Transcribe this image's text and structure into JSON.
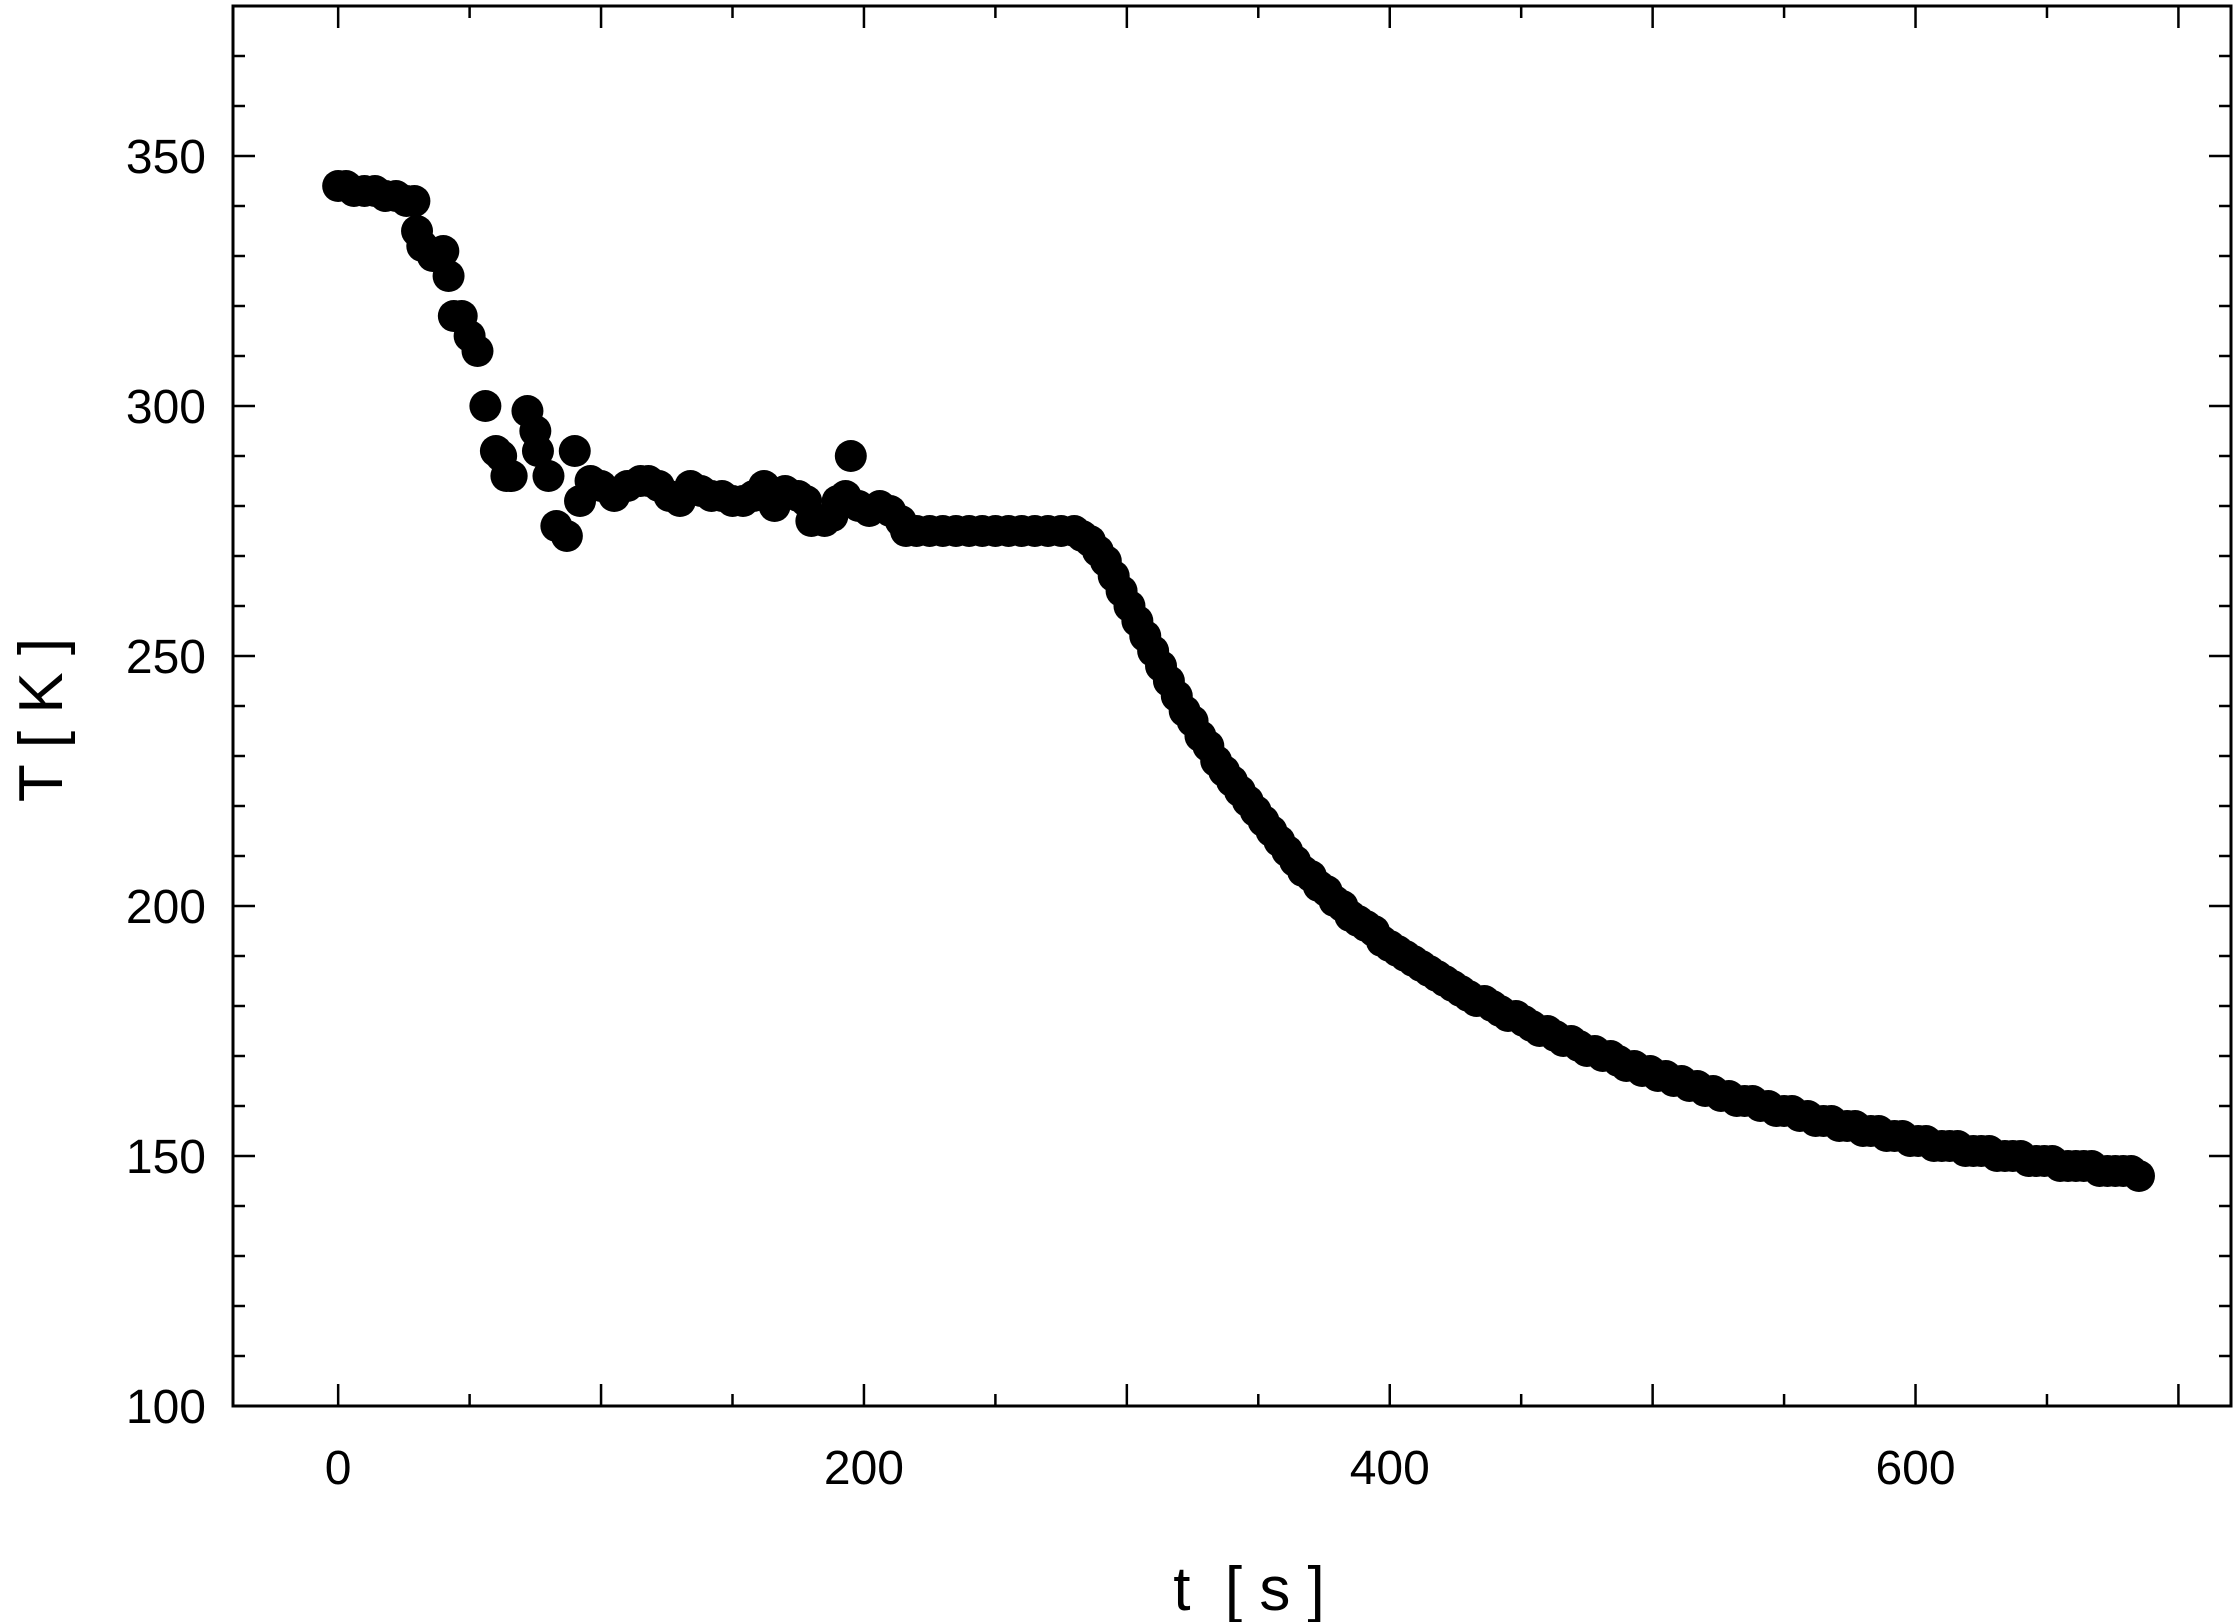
{
  "chart_data": {
    "type": "scatter",
    "title": "",
    "xlabel": "t  [ s ]",
    "ylabel": "T [ K ]",
    "xlim": [
      -40,
      720
    ],
    "ylim": [
      100,
      380
    ],
    "xticks": [
      0,
      200,
      400,
      600
    ],
    "yticks": [
      100,
      150,
      200,
      250,
      300,
      350
    ],
    "grid": false,
    "marker_color": "#000000",
    "series": [
      {
        "points": [
          [
            0,
            344
          ],
          [
            3,
            344
          ],
          [
            6,
            343
          ],
          [
            10,
            343
          ],
          [
            14,
            343
          ],
          [
            18,
            342
          ],
          [
            22,
            342
          ],
          [
            26,
            341
          ],
          [
            29,
            341
          ],
          [
            30,
            335
          ],
          [
            32,
            332
          ],
          [
            36,
            330
          ],
          [
            40,
            331
          ],
          [
            42,
            326
          ],
          [
            44,
            318
          ],
          [
            47,
            318
          ],
          [
            50,
            314
          ],
          [
            53,
            311
          ],
          [
            56,
            300
          ],
          [
            60,
            291
          ],
          [
            62,
            290
          ],
          [
            64,
            286
          ],
          [
            66,
            286
          ],
          [
            72,
            299
          ],
          [
            75,
            295
          ],
          [
            76,
            291
          ],
          [
            80,
            286
          ],
          [
            83,
            276
          ],
          [
            87,
            274
          ],
          [
            90,
            291
          ],
          [
            92,
            281
          ],
          [
            96,
            285
          ],
          [
            100,
            284
          ],
          [
            105,
            282
          ],
          [
            110,
            284
          ],
          [
            115,
            285
          ],
          [
            118,
            285
          ],
          [
            122,
            284
          ],
          [
            126,
            282
          ],
          [
            130,
            281
          ],
          [
            134,
            284
          ],
          [
            138,
            283
          ],
          [
            142,
            282
          ],
          [
            146,
            282
          ],
          [
            150,
            281
          ],
          [
            154,
            281
          ],
          [
            158,
            282
          ],
          [
            162,
            284
          ],
          [
            166,
            280
          ],
          [
            170,
            283
          ],
          [
            175,
            282
          ],
          [
            178,
            281
          ],
          [
            180,
            277
          ],
          [
            185,
            277
          ],
          [
            188,
            278
          ],
          [
            190,
            281
          ],
          [
            193,
            282
          ],
          [
            195,
            290
          ],
          [
            198,
            280
          ],
          [
            202,
            279
          ],
          [
            206,
            280
          ],
          [
            210,
            279
          ],
          [
            214,
            277
          ],
          [
            216,
            275
          ],
          [
            220,
            275
          ],
          [
            225,
            275
          ],
          [
            230,
            275
          ],
          [
            235,
            275
          ],
          [
            240,
            275
          ],
          [
            245,
            275
          ],
          [
            250,
            275
          ],
          [
            255,
            275
          ],
          [
            260,
            275
          ],
          [
            265,
            275
          ],
          [
            270,
            275
          ],
          [
            275,
            275
          ],
          [
            280,
            275
          ],
          [
            283,
            274
          ],
          [
            286,
            273
          ],
          [
            289,
            271
          ],
          [
            292,
            269
          ],
          [
            295,
            266
          ],
          [
            298,
            263
          ],
          [
            301,
            260
          ],
          [
            304,
            257
          ],
          [
            307,
            254
          ],
          [
            310,
            251
          ],
          [
            313,
            248
          ],
          [
            316,
            245
          ],
          [
            319,
            242
          ],
          [
            322,
            239
          ],
          [
            325,
            237
          ],
          [
            328,
            234
          ],
          [
            331,
            232
          ],
          [
            334,
            229
          ],
          [
            337,
            227
          ],
          [
            340,
            225
          ],
          [
            343,
            223
          ],
          [
            346,
            221
          ],
          [
            349,
            219
          ],
          [
            352,
            217
          ],
          [
            355,
            215
          ],
          [
            358,
            213
          ],
          [
            361,
            211
          ],
          [
            364,
            209
          ],
          [
            367,
            207
          ],
          [
            370,
            206
          ],
          [
            373,
            204
          ],
          [
            376,
            203
          ],
          [
            379,
            201
          ],
          [
            382,
            200
          ],
          [
            385,
            198
          ],
          [
            388,
            197
          ],
          [
            391,
            196
          ],
          [
            394,
            195
          ],
          [
            397,
            193
          ],
          [
            400,
            192
          ],
          [
            403,
            191
          ],
          [
            406,
            190
          ],
          [
            409,
            189
          ],
          [
            412,
            188
          ],
          [
            415,
            187
          ],
          [
            418,
            186
          ],
          [
            421,
            185
          ],
          [
            424,
            184
          ],
          [
            427,
            183
          ],
          [
            430,
            182
          ],
          [
            433,
            181
          ],
          [
            436,
            181
          ],
          [
            439,
            180
          ],
          [
            442,
            179
          ],
          [
            445,
            178
          ],
          [
            448,
            178
          ],
          [
            451,
            177
          ],
          [
            454,
            176
          ],
          [
            457,
            175
          ],
          [
            460,
            175
          ],
          [
            463,
            174
          ],
          [
            466,
            173
          ],
          [
            469,
            173
          ],
          [
            472,
            172
          ],
          [
            475,
            171
          ],
          [
            478,
            171
          ],
          [
            481,
            170
          ],
          [
            484,
            170
          ],
          [
            487,
            169
          ],
          [
            490,
            168
          ],
          [
            493,
            168
          ],
          [
            496,
            167
          ],
          [
            499,
            167
          ],
          [
            502,
            166
          ],
          [
            505,
            166
          ],
          [
            508,
            165
          ],
          [
            511,
            165
          ],
          [
            514,
            164
          ],
          [
            517,
            164
          ],
          [
            520,
            163
          ],
          [
            523,
            163
          ],
          [
            526,
            162
          ],
          [
            529,
            162
          ],
          [
            532,
            161
          ],
          [
            535,
            161
          ],
          [
            538,
            161
          ],
          [
            541,
            160
          ],
          [
            544,
            160
          ],
          [
            547,
            159
          ],
          [
            550,
            159
          ],
          [
            553,
            159
          ],
          [
            556,
            158
          ],
          [
            559,
            158
          ],
          [
            562,
            157
          ],
          [
            565,
            157
          ],
          [
            568,
            157
          ],
          [
            571,
            156
          ],
          [
            574,
            156
          ],
          [
            577,
            156
          ],
          [
            580,
            155
          ],
          [
            583,
            155
          ],
          [
            586,
            155
          ],
          [
            589,
            154
          ],
          [
            592,
            154
          ],
          [
            595,
            154
          ],
          [
            598,
            153
          ],
          [
            601,
            153
          ],
          [
            604,
            153
          ],
          [
            607,
            152
          ],
          [
            610,
            152
          ],
          [
            613,
            152
          ],
          [
            616,
            152
          ],
          [
            619,
            151
          ],
          [
            622,
            151
          ],
          [
            625,
            151
          ],
          [
            628,
            151
          ],
          [
            631,
            150
          ],
          [
            634,
            150
          ],
          [
            637,
            150
          ],
          [
            640,
            150
          ],
          [
            643,
            149
          ],
          [
            646,
            149
          ],
          [
            649,
            149
          ],
          [
            652,
            149
          ],
          [
            655,
            148
          ],
          [
            658,
            148
          ],
          [
            661,
            148
          ],
          [
            664,
            148
          ],
          [
            667,
            148
          ],
          [
            670,
            147
          ],
          [
            673,
            147
          ],
          [
            676,
            147
          ],
          [
            679,
            147
          ],
          [
            682,
            147
          ],
          [
            685,
            146
          ]
        ]
      }
    ]
  }
}
